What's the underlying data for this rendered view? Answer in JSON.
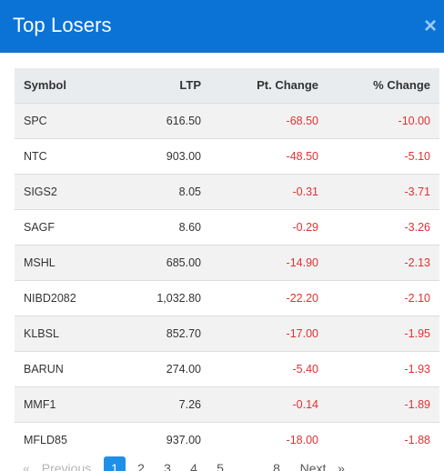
{
  "modal": {
    "title": "Top Losers",
    "close_glyph": "×"
  },
  "table": {
    "headers": {
      "symbol": "Symbol",
      "ltp": "LTP",
      "pt_change": "Pt. Change",
      "pct_change": "% Change"
    },
    "rows": [
      {
        "symbol": "SPC",
        "ltp": "616.50",
        "pt_change": "-68.50",
        "pct_change": "-10.00"
      },
      {
        "symbol": "NTC",
        "ltp": "903.00",
        "pt_change": "-48.50",
        "pct_change": "-5.10"
      },
      {
        "symbol": "SIGS2",
        "ltp": "8.05",
        "pt_change": "-0.31",
        "pct_change": "-3.71"
      },
      {
        "symbol": "SAGF",
        "ltp": "8.60",
        "pt_change": "-0.29",
        "pct_change": "-3.26"
      },
      {
        "symbol": "MSHL",
        "ltp": "685.00",
        "pt_change": "-14.90",
        "pct_change": "-2.13"
      },
      {
        "symbol": "NIBD2082",
        "ltp": "1,032.80",
        "pt_change": "-22.20",
        "pct_change": "-2.10"
      },
      {
        "symbol": "KLBSL",
        "ltp": "852.70",
        "pt_change": "-17.00",
        "pct_change": "-1.95"
      },
      {
        "symbol": "BARUN",
        "ltp": "274.00",
        "pt_change": "-5.40",
        "pct_change": "-1.93"
      },
      {
        "symbol": "MMF1",
        "ltp": "7.26",
        "pt_change": "-0.14",
        "pct_change": "-1.89"
      },
      {
        "symbol": "MFLD85",
        "ltp": "937.00",
        "pt_change": "-18.00",
        "pct_change": "-1.88"
      }
    ],
    "negative_color": "#e03131"
  },
  "pagination": {
    "first": "«",
    "previous": "Previous",
    "pages": [
      "1",
      "2",
      "3",
      "4",
      "5"
    ],
    "ellipsis": "...",
    "last_page": "8",
    "next": "Next",
    "last": "»",
    "current": "1"
  },
  "colors": {
    "header_bg": "#0b73d6",
    "active_page": "#1e90e8"
  }
}
